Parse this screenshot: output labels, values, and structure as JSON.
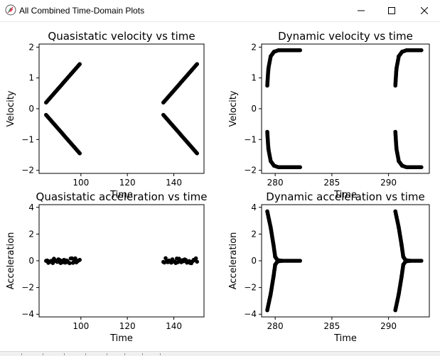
{
  "window": {
    "title": "All Combined Time-Domain Plots",
    "icon": "feather-icon",
    "controls": [
      "minimize-icon",
      "maximize-icon",
      "close-icon"
    ]
  },
  "chart_data": [
    {
      "type": "scatter",
      "title": "Quasistatic velocity vs time",
      "xlabel": "Time",
      "ylabel": "Velocity",
      "xlim": [
        82,
        153
      ],
      "ylim": [
        -2.1,
        2.1
      ],
      "xticks": [
        100,
        120,
        140
      ],
      "yticks": [
        -2,
        -1,
        0,
        1,
        2
      ],
      "marker_color": "#000000",
      "series": [
        {
          "x": [
            85,
            99.5
          ],
          "y": [
            0.2,
            1.45
          ]
        },
        {
          "x": [
            85,
            99.5
          ],
          "y": [
            -0.2,
            -1.45
          ]
        },
        {
          "x": [
            135.5,
            150
          ],
          "y": [
            0.2,
            1.45
          ]
        },
        {
          "x": [
            135.5,
            150
          ],
          "y": [
            -0.2,
            -1.45
          ]
        }
      ]
    },
    {
      "type": "scatter",
      "title": "Dynamic velocity vs time",
      "xlabel": "Time",
      "ylabel": "Velocity",
      "xlim": [
        278.8,
        293.6
      ],
      "ylim": [
        -2.1,
        2.1
      ],
      "xticks": [
        280,
        285,
        290
      ],
      "yticks": [
        -2,
        -1,
        0,
        1,
        2
      ],
      "marker_color": "#000000",
      "series": [
        {
          "x": [
            279.3,
            279.4,
            279.6,
            279.9,
            280.3,
            282.2
          ],
          "y": [
            0.75,
            1.3,
            1.7,
            1.85,
            1.9,
            1.9
          ]
        },
        {
          "x": [
            279.3,
            279.4,
            279.6,
            279.9,
            280.3,
            282.2
          ],
          "y": [
            -0.75,
            -1.3,
            -1.7,
            -1.85,
            -1.9,
            -1.9
          ]
        },
        {
          "x": [
            290.6,
            290.7,
            290.9,
            291.2,
            291.6,
            292.9
          ],
          "y": [
            0.75,
            1.3,
            1.7,
            1.85,
            1.9,
            1.9
          ]
        },
        {
          "x": [
            290.6,
            290.7,
            290.9,
            291.2,
            291.6,
            292.9
          ],
          "y": [
            -0.75,
            -1.3,
            -1.7,
            -1.85,
            -1.9,
            -1.9
          ]
        }
      ]
    },
    {
      "type": "scatter",
      "title": "Quasistatic acceleration vs time",
      "xlabel": "Time",
      "ylabel": "Acceleration",
      "xlim": [
        82,
        153
      ],
      "ylim": [
        -4.2,
        4.2
      ],
      "xticks": [
        100,
        120,
        140
      ],
      "yticks": [
        -4,
        -2,
        0,
        2,
        4
      ],
      "marker_color": "#000000",
      "series": [
        {
          "x": [
            85,
            99.5
          ],
          "y": [
            0,
            0
          ],
          "band": 0.2
        },
        {
          "x": [
            135.5,
            150
          ],
          "y": [
            0,
            0
          ],
          "band": 0.2
        }
      ]
    },
    {
      "type": "scatter",
      "title": "Dynamic acceleration vs time",
      "xlabel": "Time",
      "ylabel": "Acceleration",
      "xlim": [
        278.8,
        293.6
      ],
      "ylim": [
        -4.2,
        4.2
      ],
      "xticks": [
        280,
        285,
        290
      ],
      "yticks": [
        -4,
        -2,
        0,
        2,
        4
      ],
      "marker_color": "#000000",
      "series": [
        {
          "x": [
            279.3,
            279.6,
            279.85,
            280.0,
            280.2,
            280.6,
            282.2
          ],
          "y": [
            3.7,
            2.5,
            1.2,
            0.3,
            0.05,
            0,
            0
          ]
        },
        {
          "x": [
            279.3,
            279.6,
            279.85,
            280.0,
            280.2,
            280.6
          ],
          "y": [
            -3.7,
            -2.5,
            -1.2,
            -0.3,
            -0.05,
            0
          ]
        },
        {
          "x": [
            290.6,
            290.9,
            291.15,
            291.3,
            291.5,
            291.9,
            292.9
          ],
          "y": [
            3.7,
            2.5,
            1.2,
            0.3,
            0.05,
            0,
            0
          ]
        },
        {
          "x": [
            290.6,
            290.9,
            291.15,
            291.3,
            291.5,
            291.9
          ],
          "y": [
            -3.7,
            -2.5,
            -1.2,
            -0.3,
            -0.05,
            0
          ]
        }
      ]
    }
  ]
}
